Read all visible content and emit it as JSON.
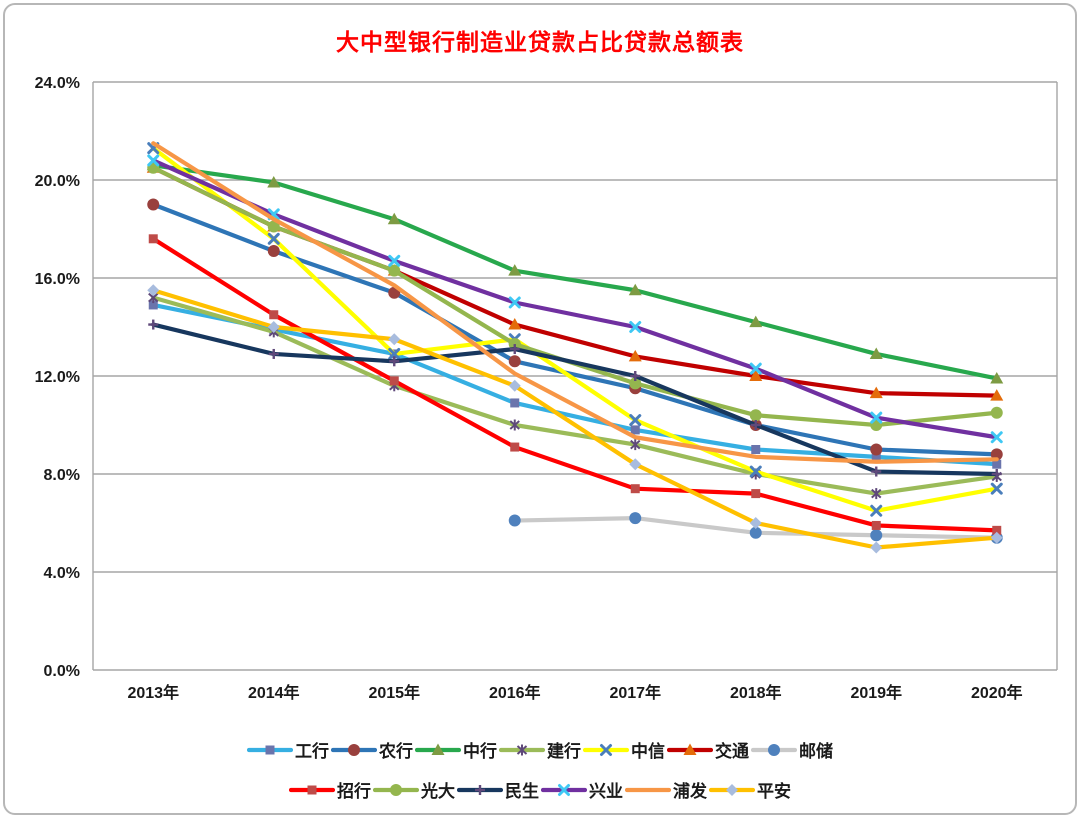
{
  "title": {
    "text": "大中型银行制造业贷款占比贷款总额表",
    "color": "#FF0000"
  },
  "chart_data": {
    "type": "line",
    "title": "大中型银行制造业贷款占比贷款总额表",
    "categories": [
      "2013年",
      "2014年",
      "2015年",
      "2016年",
      "2017年",
      "2018年",
      "2019年",
      "2020年"
    ],
    "y_axis": {
      "min": 0,
      "max": 24,
      "step": 4,
      "tick_labels": [
        "0.0%",
        "4.0%",
        "8.0%",
        "12.0%",
        "16.0%",
        "20.0%",
        "24.0%"
      ]
    },
    "grid": true,
    "legend_position": "bottom",
    "grid_color": "#a6a6a6",
    "axis_text_color": "#1a1a1a",
    "series": [
      {
        "name": "工行",
        "line_color": "#36AFE2",
        "marker": "square",
        "marker_color": "#6A74AC",
        "values": [
          14.9,
          13.9,
          12.9,
          10.9,
          9.8,
          9.0,
          8.7,
          8.4
        ]
      },
      {
        "name": "农行",
        "line_color": "#2E75B6",
        "marker": "circle",
        "marker_color": "#99403D",
        "values": [
          19.0,
          17.1,
          15.4,
          12.6,
          11.5,
          10.0,
          9.0,
          8.8
        ]
      },
      {
        "name": "中行",
        "line_color": "#28A84D",
        "marker": "triangle",
        "marker_color": "#7D9B43",
        "values": [
          20.6,
          19.9,
          18.4,
          16.3,
          15.5,
          14.2,
          12.9,
          11.9
        ]
      },
      {
        "name": "建行",
        "line_color": "#9BBB59",
        "marker": "asterisk",
        "marker_color": "#5F497A",
        "values": [
          15.2,
          13.8,
          11.6,
          10.0,
          9.2,
          8.0,
          7.2,
          7.9
        ]
      },
      {
        "name": "中信",
        "line_color": "#FFFF00",
        "marker": "x",
        "marker_color": "#4A7EBB",
        "values": [
          21.3,
          17.6,
          12.9,
          13.5,
          10.2,
          8.1,
          6.5,
          7.4
        ]
      },
      {
        "name": "交通",
        "line_color": "#C00000",
        "marker": "triangle",
        "marker_color": "#E46C0A",
        "values": [
          20.5,
          18.1,
          16.3,
          14.1,
          12.8,
          12.0,
          11.3,
          11.2
        ]
      },
      {
        "name": "邮储",
        "line_color": "#C9C9C9",
        "marker": "circle",
        "marker_color": "#4F81BD",
        "values": [
          null,
          null,
          null,
          6.1,
          6.2,
          5.6,
          5.5,
          5.4
        ]
      },
      {
        "name": "招行",
        "line_color": "#FF0000",
        "marker": "square",
        "marker_color": "#BE4B48",
        "values": [
          17.6,
          14.5,
          11.8,
          9.1,
          7.4,
          7.2,
          5.9,
          5.7
        ]
      },
      {
        "name": "光大",
        "line_color": "#94B64E",
        "marker": "circle",
        "marker_color": "#94B64E",
        "values": [
          20.5,
          18.1,
          16.3,
          13.3,
          11.7,
          10.4,
          10.0,
          10.5
        ]
      },
      {
        "name": "民生",
        "line_color": "#17375E",
        "marker": "plus",
        "marker_color": "#5F497A",
        "values": [
          14.1,
          12.9,
          12.6,
          13.1,
          12.0,
          10.0,
          8.1,
          8.0
        ]
      },
      {
        "name": "兴业",
        "line_color": "#7030A0",
        "marker": "x",
        "marker_color": "#3FC8F4",
        "values": [
          20.8,
          18.6,
          16.7,
          15.0,
          14.0,
          12.3,
          10.3,
          9.5
        ]
      },
      {
        "name": "浦发",
        "line_color": "#F79646",
        "marker": "none",
        "marker_color": "#F79646",
        "values": [
          21.5,
          18.4,
          15.7,
          12.1,
          9.5,
          8.7,
          8.5,
          8.6
        ]
      },
      {
        "name": "平安",
        "line_color": "#FFC000",
        "marker": "diamond",
        "marker_color": "#A8BCDE",
        "values": [
          15.5,
          14.0,
          13.5,
          11.6,
          8.4,
          6.0,
          5.0,
          5.4
        ]
      }
    ],
    "legend_rows": [
      [
        "工行",
        "农行",
        "中行",
        "建行",
        "中信",
        "交通",
        "邮储"
      ],
      [
        "招行",
        "光大",
        "民生",
        "兴业",
        "浦发",
        "平安"
      ]
    ]
  }
}
